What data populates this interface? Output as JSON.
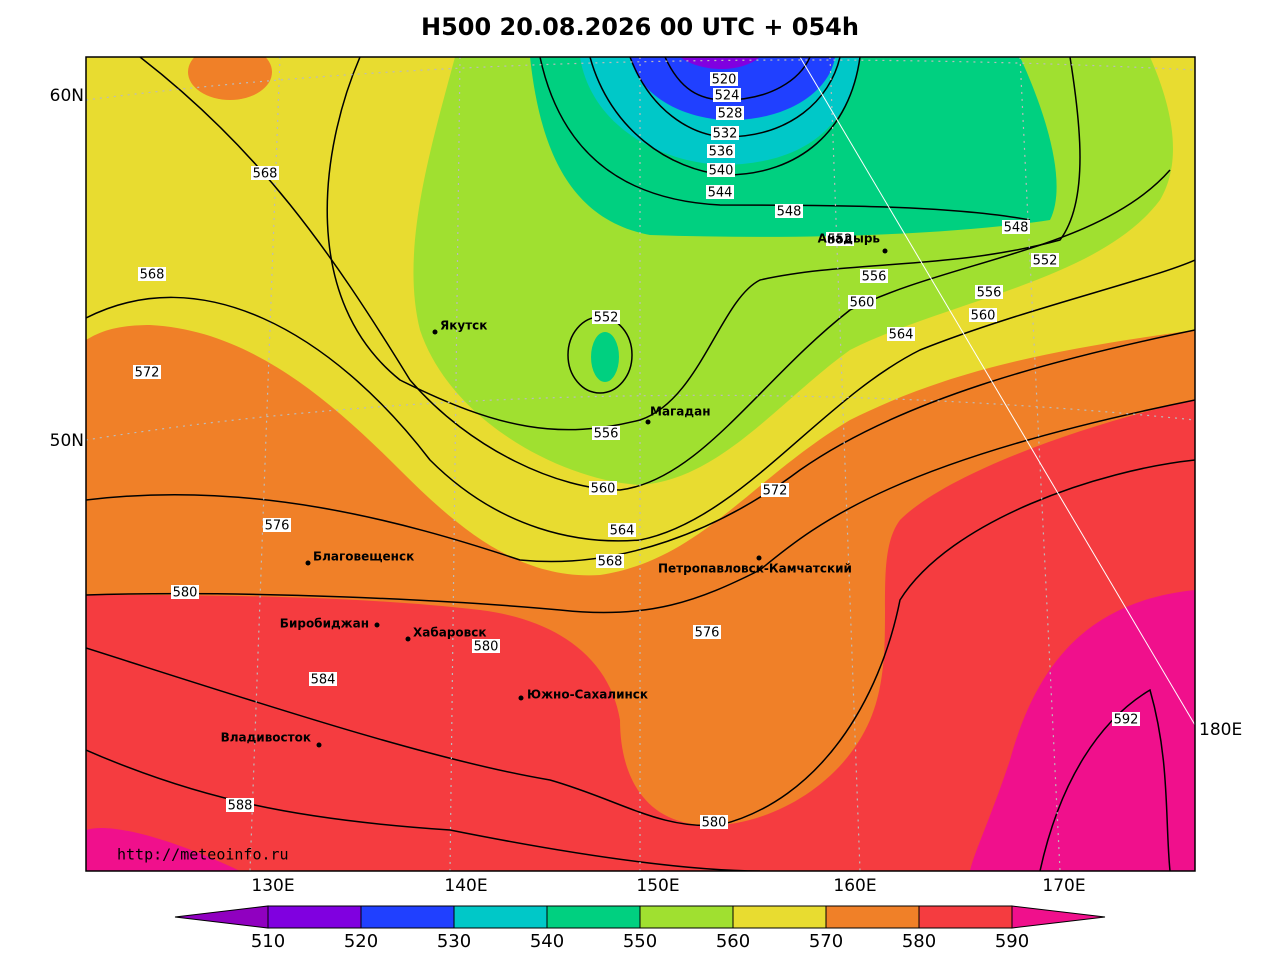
{
  "title": "H500  20.08.2026 00 UTC + 054h",
  "lat_labels": [
    "60N",
    "50N"
  ],
  "edge_label": "180E",
  "lon_labels": [
    "130E",
    "140E",
    "150E",
    "160E",
    "170E"
  ],
  "contour_labels": [
    520,
    524,
    528,
    532,
    536,
    540,
    544,
    548,
    552,
    548,
    552,
    556,
    556,
    560,
    560,
    564,
    568,
    568,
    572,
    552,
    556,
    560,
    564,
    568,
    572,
    576,
    580,
    576,
    580,
    584,
    588,
    580,
    592
  ],
  "cities": [
    "Якутск",
    "Анадырь",
    "Магадан",
    "Благовещенск",
    "Биробиджан",
    "Хабаровск",
    "Петропавловск-Камчатский",
    "Южно-Сахалинск",
    "Владивосток"
  ],
  "source": "http://meteoinfo.ru",
  "colorbar": {
    "ticks": [
      510,
      520,
      530,
      540,
      550,
      560,
      570,
      580,
      590
    ],
    "colors": [
      "#9000c0",
      "#8000e0",
      "#2040ff",
      "#00c8c8",
      "#00d080",
      "#a0e030",
      "#e8dc30",
      "#f08028",
      "#f53c40",
      "#f0108c"
    ]
  }
}
